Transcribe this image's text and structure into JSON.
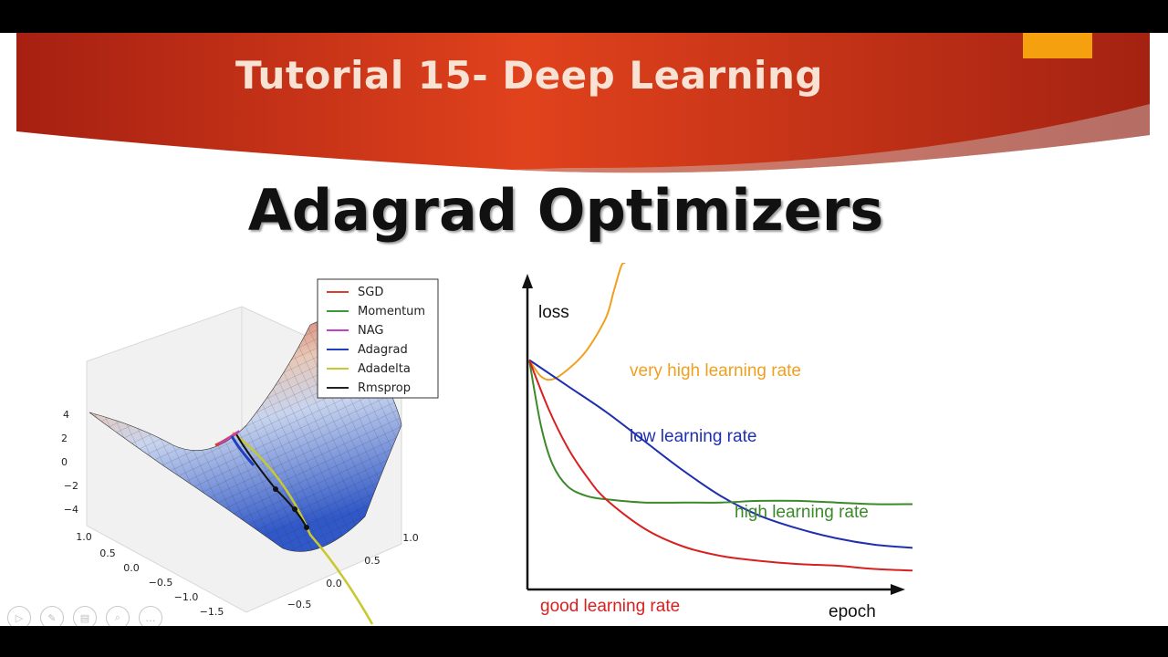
{
  "header": {
    "title": "Tutorial 15- Deep Learning"
  },
  "main": {
    "title": "Adagrad Optimizers"
  },
  "surface_plot": {
    "legend": [
      {
        "label": "SGD",
        "color": "#e03a2c"
      },
      {
        "label": "Momentum",
        "color": "#3a9a3a"
      },
      {
        "label": "NAG",
        "color": "#c040c8"
      },
      {
        "label": "Adagrad",
        "color": "#2040c0"
      },
      {
        "label": "Adadelta",
        "color": "#c8c830"
      },
      {
        "label": "Rmsprop",
        "color": "#222222"
      }
    ],
    "z_ticks": [
      "4",
      "2",
      "0",
      "−2",
      "−4"
    ],
    "y_ticks": [
      "1.0",
      "0.5",
      "0.0",
      "−0.5",
      "−1.0",
      "−1.5"
    ],
    "x_ticks": [
      "1.0",
      "0.5",
      "0.0",
      "−0.5"
    ]
  },
  "chart_data": {
    "type": "line",
    "title": "",
    "xlabel": "epoch",
    "ylabel": "loss",
    "x_range": [
      0,
      100
    ],
    "y_range": [
      0,
      100
    ],
    "grid": false,
    "series": [
      {
        "name": "very high learning rate",
        "color": "#f0a020",
        "x": [
          0,
          3,
          6,
          10,
          15,
          20,
          22,
          24,
          25
        ],
        "y": [
          70,
          65,
          64,
          67,
          73,
          83,
          91,
          99,
          100
        ]
      },
      {
        "name": "low learning rate",
        "color": "#1f2fb0",
        "x": [
          0,
          10,
          20,
          30,
          40,
          50,
          60,
          70,
          80,
          90,
          100
        ],
        "y": [
          70,
          62,
          54,
          45,
          36,
          28,
          22,
          18,
          15,
          13,
          12
        ]
      },
      {
        "name": "high learning rate",
        "color": "#3a8a2a",
        "x": [
          0,
          3,
          6,
          10,
          15,
          20,
          30,
          40,
          50,
          60,
          70,
          80,
          90,
          100
        ],
        "y": [
          70,
          50,
          38,
          31,
          28,
          27,
          26,
          26,
          26,
          26.5,
          26.5,
          26,
          25.5,
          25.5
        ]
      },
      {
        "name": "good learning rate",
        "color": "#d82020",
        "x": [
          0,
          5,
          10,
          15,
          20,
          30,
          40,
          50,
          60,
          70,
          80,
          90,
          100
        ],
        "y": [
          70,
          55,
          43,
          34,
          27,
          18,
          12.5,
          9.5,
          8,
          7,
          6.5,
          5.5,
          5
        ]
      }
    ]
  }
}
